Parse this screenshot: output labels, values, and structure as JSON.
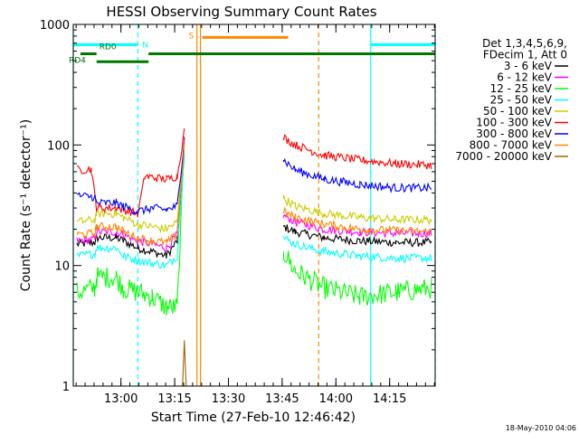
{
  "chart_data": {
    "type": "line",
    "title": "HESSI Observing Summary Count Rates",
    "xlabel": "Start Time (27-Feb-10 12:46:42)",
    "ylabel": "Count Rate (s⁻¹ detector⁻¹)",
    "xaxis_unit": "minutes after 12:46:42",
    "xlim": [
      0,
      101
    ],
    "ylim": [
      1,
      1000
    ],
    "yscale": "log",
    "grid": false,
    "legend_position": "right",
    "x_ticks": [
      {
        "label": "13:00",
        "value": 13.3
      },
      {
        "label": "13:15",
        "value": 28.3
      },
      {
        "label": "13:30",
        "value": 43.3
      },
      {
        "label": "13:45",
        "value": 58.3
      },
      {
        "label": "14:00",
        "value": 73.3
      },
      {
        "label": "14:15",
        "value": 88.3
      }
    ],
    "y_ticks": [
      {
        "label": "1",
        "value": 1
      },
      {
        "label": "10",
        "value": 10
      },
      {
        "label": "100",
        "value": 100
      },
      {
        "label": "1000",
        "value": 1000
      }
    ],
    "legend_header": [
      "Det 1,3,4,5,6,9,",
      "FDecim 1, Att 0"
    ],
    "series": [
      {
        "name": "3 - 6 keV",
        "color": "#000000",
        "points": [
          [
            1,
            15
          ],
          [
            6,
            15.5
          ],
          [
            6.5,
            17
          ],
          [
            12,
            17
          ],
          [
            14,
            16
          ],
          [
            18,
            14
          ],
          [
            22,
            13
          ],
          [
            26,
            12
          ],
          [
            29,
            16
          ],
          [
            31,
            110
          ],
          [
            58.7,
            21
          ],
          [
            62,
            19
          ],
          [
            70,
            17
          ],
          [
            80,
            16
          ],
          [
            90,
            15.5
          ],
          [
            100,
            15.5
          ]
        ]
      },
      {
        "name": "6 - 12 keV",
        "color": "#ff00ff",
        "points": [
          [
            1,
            16
          ],
          [
            6,
            16.5
          ],
          [
            6.5,
            19
          ],
          [
            12,
            19
          ],
          [
            14,
            18
          ],
          [
            18,
            16
          ],
          [
            22,
            15
          ],
          [
            26,
            14
          ],
          [
            29,
            18
          ],
          [
            31,
            110
          ],
          [
            58.7,
            26
          ],
          [
            62,
            23
          ],
          [
            70,
            20
          ],
          [
            80,
            19
          ],
          [
            90,
            18.5
          ],
          [
            100,
            18.5
          ]
        ]
      },
      {
        "name": "12 - 25 keV",
        "color": "#00ff00",
        "points": [
          [
            1,
            6
          ],
          [
            6,
            6.5
          ],
          [
            6.5,
            8
          ],
          [
            12,
            8
          ],
          [
            14,
            6.5
          ],
          [
            18,
            6
          ],
          [
            22,
            5.5
          ],
          [
            26,
            4.5
          ],
          [
            29,
            4.5
          ],
          [
            31,
            90
          ],
          [
            58.7,
            13
          ],
          [
            62,
            9
          ],
          [
            70,
            6.5
          ],
          [
            80,
            5.5
          ],
          [
            90,
            6
          ],
          [
            100,
            6.5
          ]
        ]
      },
      {
        "name": "25 - 50 keV",
        "color": "#00ffff",
        "points": [
          [
            1,
            12
          ],
          [
            6,
            12.5
          ],
          [
            6.5,
            14
          ],
          [
            12,
            14
          ],
          [
            14,
            12
          ],
          [
            18,
            11
          ],
          [
            22,
            10.5
          ],
          [
            26,
            10
          ],
          [
            29,
            12
          ],
          [
            31,
            95
          ],
          [
            58.7,
            17
          ],
          [
            62,
            15
          ],
          [
            70,
            13
          ],
          [
            80,
            12
          ],
          [
            90,
            11.5
          ],
          [
            100,
            11.5
          ]
        ]
      },
      {
        "name": "50 - 100 keV",
        "color": "#cccc00",
        "points": [
          [
            1,
            23
          ],
          [
            6,
            24
          ],
          [
            6.5,
            27
          ],
          [
            12,
            27
          ],
          [
            14,
            25
          ],
          [
            18,
            22
          ],
          [
            22,
            21
          ],
          [
            26,
            20
          ],
          [
            29,
            23
          ],
          [
            31,
            110
          ],
          [
            58.7,
            36
          ],
          [
            62,
            31
          ],
          [
            70,
            27
          ],
          [
            80,
            25
          ],
          [
            90,
            24
          ],
          [
            100,
            24
          ]
        ]
      },
      {
        "name": "100 - 300 keV",
        "color": "#ff0000",
        "points": [
          [
            1,
            62
          ],
          [
            5,
            63
          ],
          [
            6.5,
            30
          ],
          [
            12,
            30
          ],
          [
            14,
            29
          ],
          [
            18,
            27
          ],
          [
            20,
            55
          ],
          [
            26,
            52
          ],
          [
            29,
            55
          ],
          [
            31,
            130
          ],
          [
            58.7,
            115
          ],
          [
            62,
            100
          ],
          [
            70,
            82
          ],
          [
            80,
            75
          ],
          [
            90,
            70
          ],
          [
            100,
            68
          ]
        ]
      },
      {
        "name": "300 - 800 keV",
        "color": "#0000ff",
        "points": [
          [
            1,
            38
          ],
          [
            6,
            37
          ],
          [
            6.5,
            33
          ],
          [
            12,
            33
          ],
          [
            14,
            31
          ],
          [
            18,
            28
          ],
          [
            22,
            30
          ],
          [
            26,
            29
          ],
          [
            29,
            31
          ],
          [
            31,
            110
          ],
          [
            58.7,
            75
          ],
          [
            62,
            62
          ],
          [
            70,
            52
          ],
          [
            80,
            47
          ],
          [
            90,
            44
          ],
          [
            100,
            44
          ]
        ]
      },
      {
        "name": "800 - 7000 keV",
        "color": "#ff8800",
        "points": [
          [
            1,
            18
          ],
          [
            6,
            18.5
          ],
          [
            6.5,
            21
          ],
          [
            12,
            21
          ],
          [
            14,
            19
          ],
          [
            18,
            17
          ],
          [
            22,
            16
          ],
          [
            26,
            15.5
          ],
          [
            29,
            18
          ],
          [
            31,
            100
          ],
          [
            58.7,
            28
          ],
          [
            62,
            25
          ],
          [
            70,
            22
          ],
          [
            80,
            20
          ],
          [
            90,
            19.5
          ],
          [
            100,
            19
          ]
        ]
      },
      {
        "name": "7000 - 20000 keV",
        "color": "#996600",
        "points": [
          [
            30.5,
            1
          ],
          [
            31,
            2.5
          ],
          [
            31.5,
            1
          ]
        ]
      }
    ],
    "markers": {
      "saa_label": "S",
      "night_label": "N",
      "decimation_labels": [
        "RD0",
        "RD4"
      ],
      "saa_bar": {
        "color": "#ff8800",
        "x": [
          36,
          60
        ],
        "y": 780
      },
      "night_bars": [
        {
          "color": "#00ffff",
          "x": [
            0,
            18
          ],
          "y": 680
        },
        {
          "color": "#00ffff",
          "x": [
            83,
            101
          ],
          "y": 680
        }
      ],
      "decimation_bars": [
        {
          "color": "#007700",
          "x": [
            2,
            6.5
          ],
          "y": 570
        },
        {
          "color": "#007700",
          "x": [
            6.5,
            21
          ],
          "y": 490
        },
        {
          "color": "#007700",
          "x": [
            21,
            101
          ],
          "y": 570
        }
      ],
      "vlines": [
        {
          "x": 0,
          "color": "#00ffff",
          "dashed": false
        },
        {
          "x": 18,
          "color": "#00ffff",
          "dashed": true
        },
        {
          "x": 34.5,
          "color": "#ff8800",
          "dashed": false
        },
        {
          "x": 35.5,
          "color": "#ff8800",
          "dashed": false
        },
        {
          "x": 68.5,
          "color": "#ff8800",
          "dashed": true
        },
        {
          "x": 83,
          "color": "#00ffff",
          "dashed": false
        },
        {
          "x": 101,
          "color": "#00ffff",
          "dashed": true
        }
      ]
    },
    "footer_timestamp": "18-May-2010 04:06"
  }
}
